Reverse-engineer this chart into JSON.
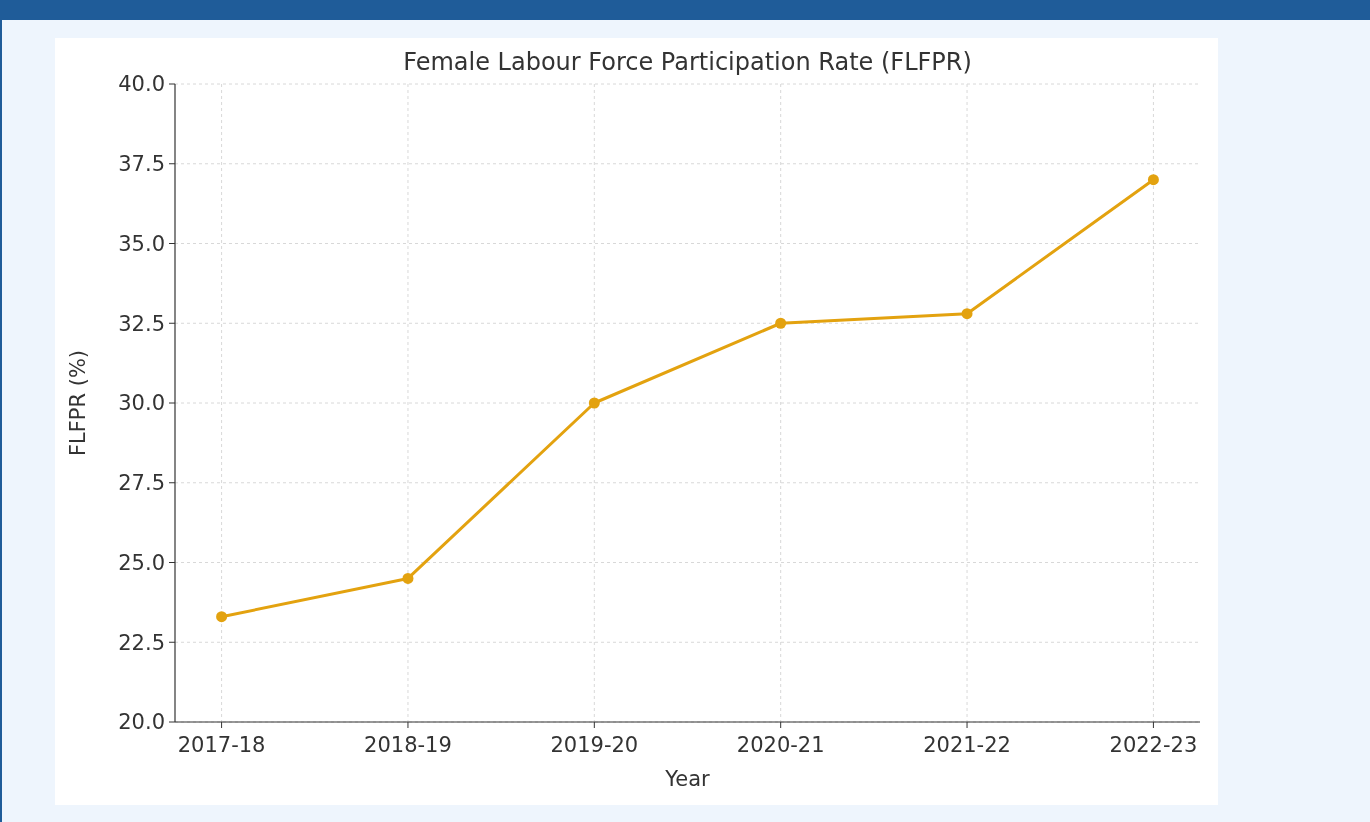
{
  "chart_data": {
    "type": "line",
    "title": "Female Labour Force Participation Rate (FLFPR)",
    "xlabel": "Year",
    "ylabel": "FLFPR (%)",
    "categories": [
      "2017-18",
      "2018-19",
      "2019-20",
      "2020-21",
      "2021-22",
      "2022-23"
    ],
    "series": [
      {
        "color": "#e3a20f",
        "values": [
          23.3,
          24.5,
          30.0,
          32.5,
          32.8,
          37.0
        ]
      }
    ],
    "ylim": [
      20,
      40
    ],
    "yticks": [
      {
        "value": 20,
        "label": "20.0"
      },
      {
        "value": 22.5,
        "label": "22.5"
      },
      {
        "value": 25,
        "label": "25.0"
      },
      {
        "value": 27.5,
        "label": "27.5"
      },
      {
        "value": 30,
        "label": "30.0"
      },
      {
        "value": 32.5,
        "label": "32.5"
      },
      {
        "value": 35,
        "label": "35.0"
      },
      {
        "value": 37.5,
        "label": "37.5"
      },
      {
        "value": 40,
        "label": "40.0"
      }
    ],
    "grid": true,
    "marker": "circle",
    "line_style": "solid"
  }
}
